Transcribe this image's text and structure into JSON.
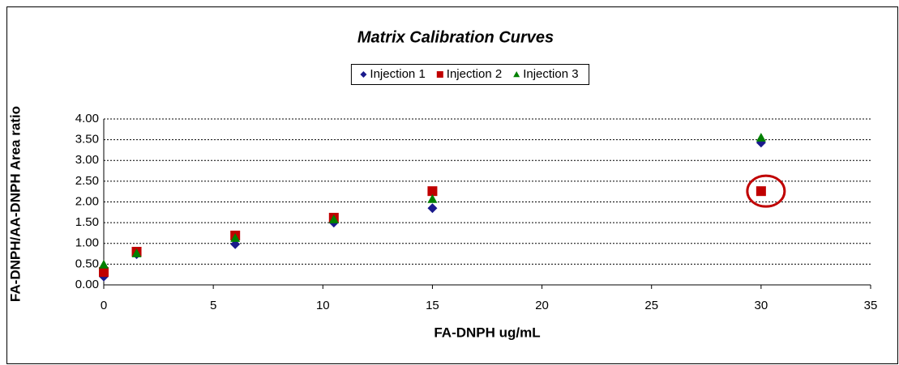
{
  "chart_data": {
    "type": "scatter",
    "title": "Matrix Calibration Curves",
    "x_label": "FA-DNPH ug/mL",
    "y_label": "FA-DNPH/AA-DNPH Area ratio",
    "xlim": [
      0,
      35
    ],
    "xticks": [
      0,
      5,
      10,
      15,
      20,
      25,
      30,
      35
    ],
    "ylim": [
      0,
      4
    ],
    "yticks": [
      {
        "value": 0,
        "label": "0.00"
      },
      {
        "value": 0.5,
        "label": "0.50"
      },
      {
        "value": 1,
        "label": "1.00"
      },
      {
        "value": 1.5,
        "label": "1.50"
      },
      {
        "value": 2,
        "label": "2.00"
      },
      {
        "value": 2.5,
        "label": "2.50"
      },
      {
        "value": 3,
        "label": "3.00"
      },
      {
        "value": 3.5,
        "label": "3.50"
      },
      {
        "value": 4,
        "label": "4.00"
      }
    ],
    "grid": true,
    "legend": "top",
    "series": [
      {
        "name": "Injection 1",
        "color": "#1a1a8c",
        "marker": "diamond",
        "x": [
          0,
          1.5,
          6,
          10.5,
          15,
          30
        ],
        "values": [
          0.2,
          0.74,
          0.98,
          1.5,
          1.85,
          3.43
        ]
      },
      {
        "name": "Injection 2",
        "color": "#c00000",
        "marker": "square",
        "x": [
          0,
          1.5,
          6,
          10.5,
          15,
          30
        ],
        "values": [
          0.31,
          0.8,
          1.19,
          1.62,
          2.26,
          2.26
        ]
      },
      {
        "name": "Injection 3",
        "color": "#008000",
        "marker": "triangle",
        "x": [
          0,
          1.5,
          6,
          10.5,
          15,
          30
        ],
        "values": [
          0.49,
          0.76,
          1.13,
          1.58,
          2.07,
          3.55
        ]
      }
    ]
  }
}
